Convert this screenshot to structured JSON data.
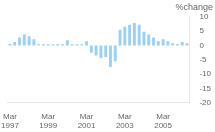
{
  "chart_data": {
    "type": "bar",
    "title": "%change",
    "categories": [
      "Mar\n1997",
      null,
      null,
      null,
      null,
      null,
      null,
      null,
      "Mar\n1999",
      null,
      null,
      null,
      null,
      null,
      null,
      null,
      "Mar\n2001",
      null,
      null,
      null,
      null,
      null,
      null,
      null,
      "Mar\n2003",
      null,
      null,
      null,
      null,
      null,
      null,
      null,
      "Mar\n2005",
      null,
      null,
      null,
      null,
      null
    ],
    "values": [
      0.5,
      1.2,
      2.8,
      3.8,
      3.2,
      2.2,
      0.4,
      0.4,
      0.4,
      0.4,
      0.4,
      0.4,
      1.8,
      0.4,
      0.4,
      0.4,
      1.5,
      -2.5,
      -3.5,
      -4.5,
      -4.0,
      -7.5,
      -5.5,
      5.5,
      6.5,
      7.2,
      7.8,
      7.2,
      4.8,
      3.8,
      2.8,
      1.5,
      2.2,
      1.5,
      0.8,
      0.4,
      1.2,
      0.8
    ],
    "ylim": [
      -20,
      10
    ],
    "yticks": [
      10,
      5,
      0,
      -5,
      -10,
      -15,
      -20
    ],
    "grid": false
  }
}
